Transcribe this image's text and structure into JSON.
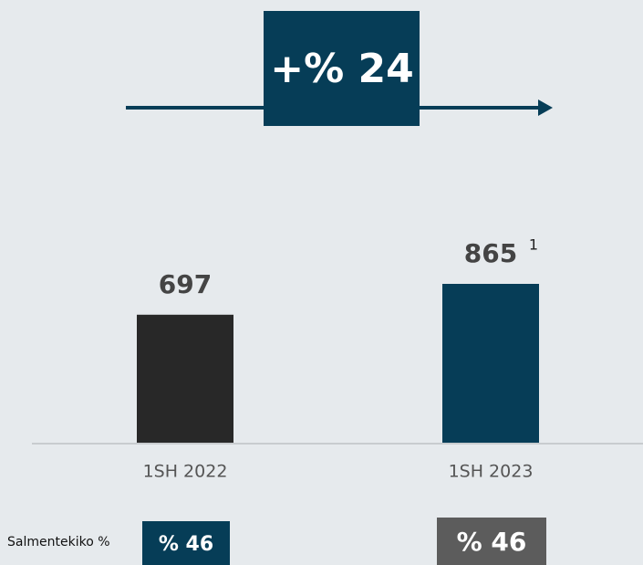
{
  "chart_data": {
    "type": "bar",
    "categories": [
      "1SH 2022",
      "1SH 2023"
    ],
    "values": [
      697,
      865
    ],
    "colors": [
      "#282828",
      "#063d57"
    ],
    "annotation": "+% 24",
    "footnote": "1",
    "margin_row": {
      "label": "Salmentekiko %",
      "values": [
        46,
        46
      ],
      "value_labels": [
        "% 46",
        "% 46"
      ],
      "colors": [
        "#063d57",
        "#5c5c5c"
      ]
    }
  }
}
